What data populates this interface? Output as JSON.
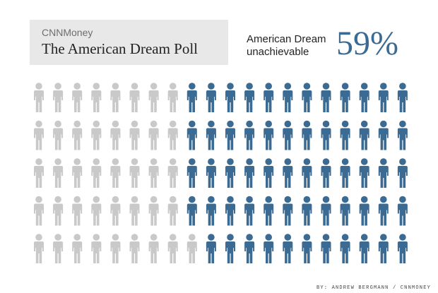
{
  "header": {
    "brand": "CNNMoney",
    "title": "The American Dream Poll"
  },
  "stat": {
    "label": "American Dream unachievable",
    "value": "59%"
  },
  "credit": "BY: ANDREW BERGMANN / CNNMONEY",
  "colors": {
    "highlight": "#3b6a93",
    "base": "#c9c9c9",
    "title_bg": "#e8e8e8"
  },
  "chart_data": {
    "type": "pictograph",
    "icon": "person-icon",
    "rows": 5,
    "columns": 20,
    "total": 100,
    "highlighted_count": 59,
    "highlighted_label": "American Dream unachievable",
    "highlighted_percent": 59,
    "highlighted_per_row": [
      12,
      12,
      12,
      12,
      11
    ]
  }
}
